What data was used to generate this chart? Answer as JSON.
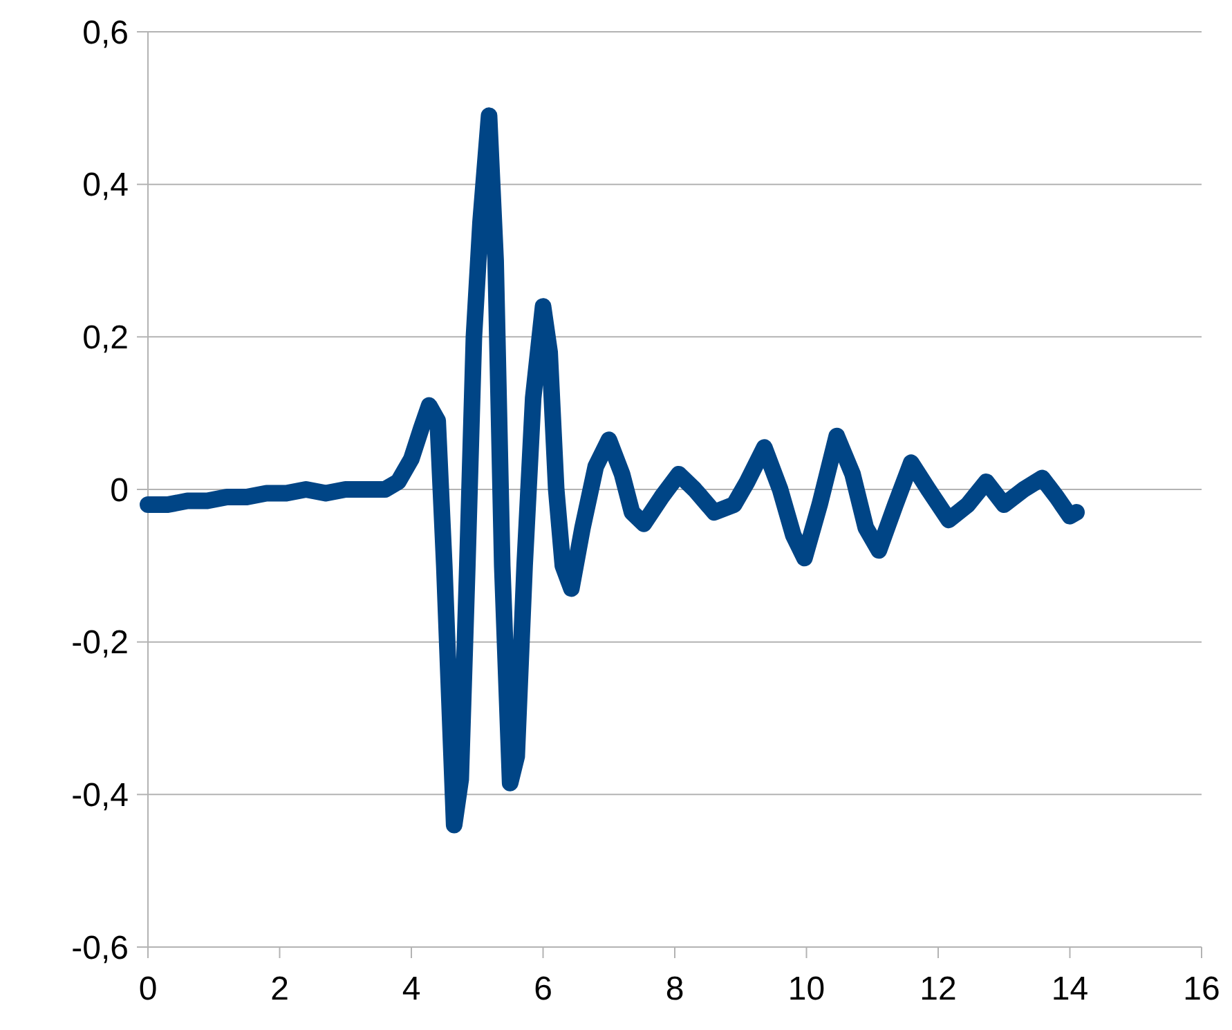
{
  "chart_data": {
    "type": "line",
    "xlim": [
      0,
      16
    ],
    "xticks": [
      0,
      2,
      4,
      6,
      8,
      10,
      12,
      14,
      16
    ],
    "ylim": [
      -0.6,
      0.6
    ],
    "yticks": [
      {
        "value": -0.6,
        "label": "-0,6"
      },
      {
        "value": -0.4,
        "label": "-0,4"
      },
      {
        "value": -0.2,
        "label": "-0,2"
      },
      {
        "value": 0,
        "label": "0"
      },
      {
        "value": 0.2,
        "label": "0,2"
      },
      {
        "value": 0.4,
        "label": "0,4"
      },
      {
        "value": 0.6,
        "label": "0,6"
      }
    ],
    "grid": "y",
    "line_style": "solid",
    "series": [
      {
        "color": "#004586",
        "x": [
          0,
          0.3,
          0.6,
          0.9,
          1.2,
          1.5,
          1.8,
          2.1,
          2.4,
          2.7,
          3.0,
          3.3,
          3.6,
          3.8,
          4.0,
          4.15,
          4.27,
          4.4,
          4.5,
          4.65,
          4.75,
          4.85,
          4.95,
          5.05,
          5.18,
          5.28,
          5.38,
          5.5,
          5.6,
          5.72,
          5.85,
          6.0,
          6.1,
          6.2,
          6.3,
          6.43,
          6.6,
          6.8,
          7.0,
          7.2,
          7.35,
          7.53,
          7.8,
          8.06,
          8.3,
          8.6,
          8.9,
          9.1,
          9.36,
          9.6,
          9.8,
          9.97,
          10.2,
          10.46,
          10.7,
          10.9,
          11.1,
          11.35,
          11.59,
          11.85,
          12.16,
          12.45,
          12.73,
          13.0,
          13.3,
          13.58,
          13.8,
          14.0,
          14.1
        ],
        "values": [
          -0.02,
          -0.02,
          -0.015,
          -0.015,
          -0.01,
          -0.01,
          -0.005,
          -0.005,
          0,
          -0.005,
          0,
          0,
          0,
          0.01,
          0.04,
          0.08,
          0.11,
          0.09,
          -0.1,
          -0.44,
          -0.38,
          -0.1,
          0.2,
          0.35,
          0.49,
          0.3,
          -0.1,
          -0.385,
          -0.35,
          -0.1,
          0.12,
          0.24,
          0.18,
          0.0,
          -0.1,
          -0.13,
          -0.05,
          0.03,
          0.065,
          0.02,
          -0.03,
          -0.045,
          -0.01,
          0.02,
          0.0,
          -0.03,
          -0.02,
          0.01,
          0.055,
          0.0,
          -0.06,
          -0.09,
          -0.02,
          0.07,
          0.02,
          -0.05,
          -0.08,
          -0.02,
          0.035,
          0.0,
          -0.04,
          -0.02,
          0.01,
          -0.02,
          0.0,
          0.015,
          -0.01,
          -0.035,
          -0.03
        ]
      }
    ]
  }
}
